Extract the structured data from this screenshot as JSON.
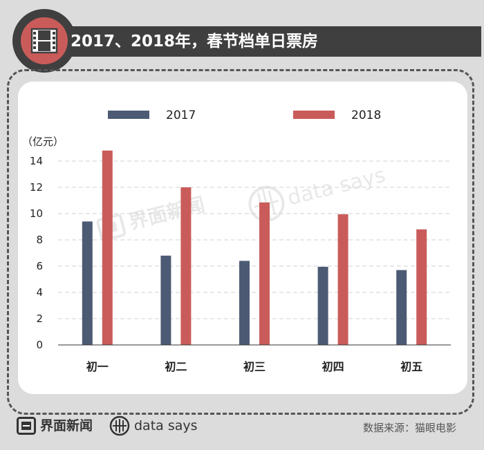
{
  "header": {
    "title": "2017、2018年，春节档单日票房",
    "icon": "film-icon"
  },
  "footer": {
    "brand_jiemian": "界面新闻",
    "brand_datasays": "data says",
    "source": "数据来源：猫眼电影"
  },
  "watermark": {
    "jiemian": "界面新闻",
    "datasays": "data says"
  },
  "colors": {
    "series_2017": "#4c5b73",
    "series_2018": "#c95c5a",
    "title_bg": "#3f3f3f"
  },
  "chart_data": {
    "type": "bar",
    "categories": [
      "初一",
      "初二",
      "初三",
      "初四",
      "初五"
    ],
    "series": [
      {
        "name": "2017",
        "values": [
          9.4,
          6.8,
          6.4,
          5.95,
          5.7
        ],
        "color": "#4c5b73"
      },
      {
        "name": "2018",
        "values": [
          14.8,
          12.0,
          10.85,
          9.95,
          8.8
        ],
        "color": "#c95c5a"
      }
    ],
    "ylabel": "（亿元）",
    "ylim": [
      0,
      14
    ],
    "yticks": [
      0,
      2,
      4,
      6,
      8,
      10,
      12,
      14
    ],
    "grid": true,
    "legend": "top"
  }
}
